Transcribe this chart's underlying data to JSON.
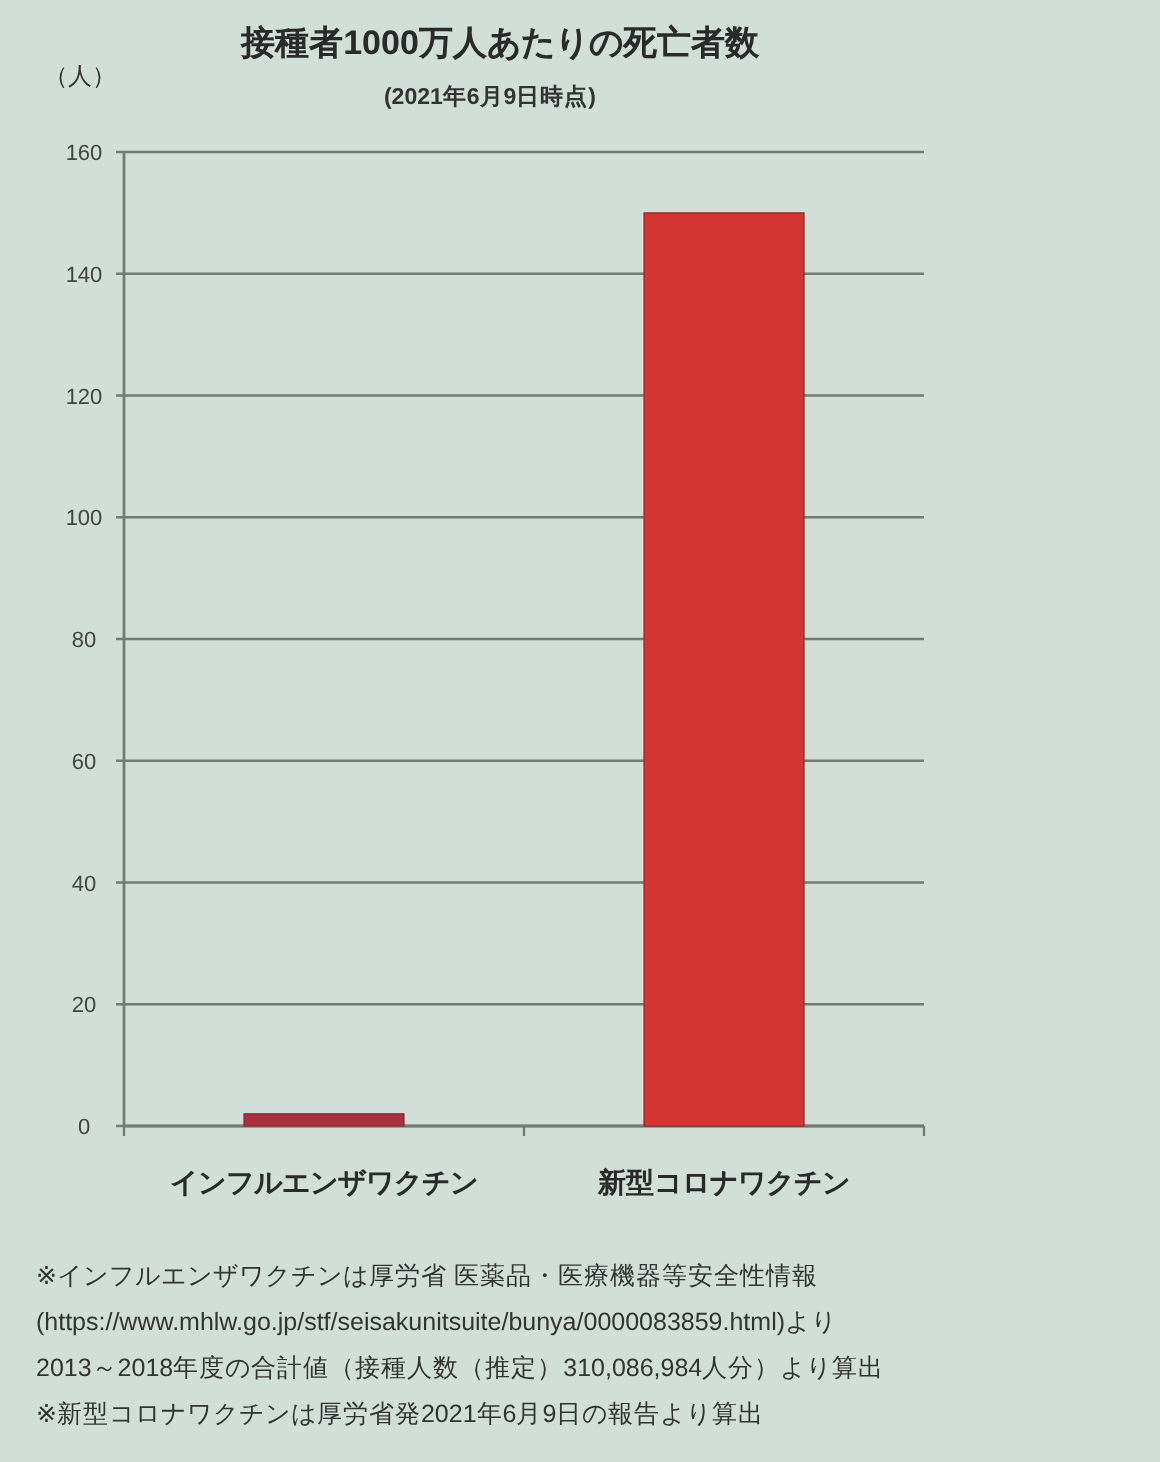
{
  "chart_data": {
    "type": "bar",
    "title": "接種者1000万人あたりの死亡者数",
    "subtitle": "(2021年6月9日時点)",
    "ylabel": "（人）",
    "categories": [
      "インフルエンザワクチン",
      "新型コロナワクチン"
    ],
    "values": [
      2,
      150
    ],
    "colors": [
      "#a8303f",
      "#d23532"
    ],
    "ylim": [
      0,
      160
    ],
    "yticks": [
      0,
      20,
      40,
      60,
      80,
      100,
      120,
      140,
      160
    ],
    "grid": "y",
    "annotations": [
      "※インフルエンザワクチンは厚労省 医薬品・医療機器等安全性情報",
      "(https://www.mhlw.go.jp/stf/seisakunitsuite/bunya/0000083859.html)より",
      "2013～2018年度の合計値（接種人数（推定）310,086,984人分）より算出",
      "※新型コロナワクチンは厚労省発2021年6月9日の報告より算出"
    ]
  }
}
